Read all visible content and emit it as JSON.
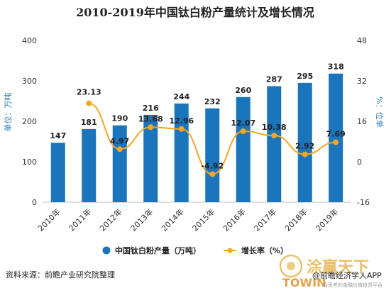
{
  "chart_data": {
    "type": "bar",
    "title": "2010-2019年中国钛白粉产量统计及增长情况",
    "categories": [
      "2010年",
      "2011年",
      "2012年",
      "2013年",
      "2014年",
      "2015年",
      "2016年",
      "2017年",
      "2018年",
      "2019年"
    ],
    "series": [
      {
        "name": "中国钛白粉产量（万吨）",
        "type": "bar",
        "axis": "left",
        "values": [
          147,
          181,
          190,
          216,
          244,
          232,
          260,
          287,
          295,
          318
        ],
        "labels": [
          "147",
          "181",
          "190",
          "216",
          "244",
          "232",
          "260",
          "287",
          "295",
          "318"
        ]
      },
      {
        "name": "增长率（%）",
        "type": "line",
        "axis": "right",
        "values": [
          null,
          23.13,
          4.97,
          13.68,
          12.96,
          -4.92,
          12.07,
          10.38,
          2.92,
          7.69
        ],
        "labels": [
          "",
          "23.13",
          "4.97",
          "13.68",
          "12.96",
          "-4.92",
          "12.07",
          "10.38",
          "2.92",
          "7.69"
        ]
      }
    ],
    "y_left": {
      "label": "单位：万吨",
      "min": 0,
      "max": 400,
      "ticks": [
        "0",
        "100",
        "200",
        "300",
        "400"
      ]
    },
    "y_right": {
      "label": "%：位单",
      "min": -16,
      "max": 48,
      "ticks": [
        "-16",
        "0",
        "16",
        "32",
        "48"
      ]
    },
    "grid": false,
    "legend_position": "bottom",
    "colors": {
      "bar": "#1a75bc",
      "line": "#f5a623",
      "marker_fill": "#f5a623"
    }
  },
  "footer": {
    "source": "资料来源：前瞻产业研究院整理",
    "brand": "@前瞻经济学人APP",
    "watermark_cn": "涂赢天下",
    "watermark_en": "TOWIN",
    "watermark_sub": "会思考的金融价值投资平台"
  },
  "watermark_icon": "qianzhan-logo-icon"
}
